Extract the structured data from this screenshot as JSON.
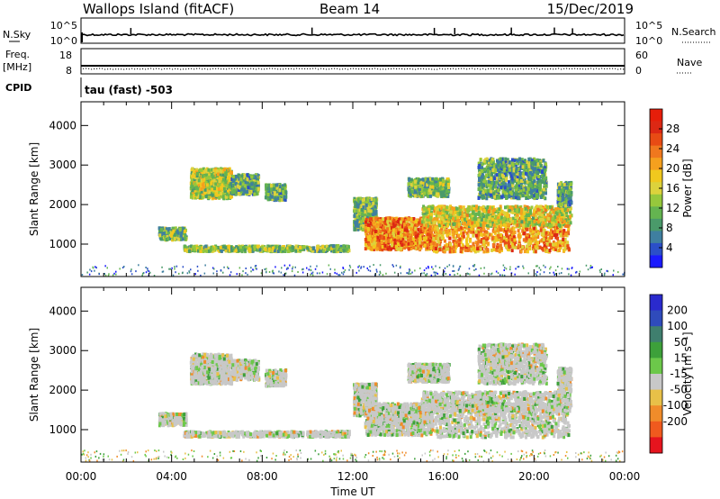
{
  "header": {
    "station": "Wallops Island (fitACF)",
    "beam": "Beam 14",
    "date": "15/Dec/2019"
  },
  "status_panels": {
    "nsky": {
      "label": "N.Sky",
      "left_ticks": [
        "10^5",
        "10^0"
      ]
    },
    "nsearch": {
      "label": "N.Search",
      "right_ticks": [
        "10^5",
        "10^0"
      ]
    },
    "freq": {
      "label_line1": "Freq.",
      "label_line2": "[MHz]",
      "left_ticks": [
        "18",
        "8"
      ]
    },
    "nave": {
      "label": "Nave",
      "right_ticks": [
        "60",
        "0"
      ]
    },
    "cpid": {
      "label": "CPID",
      "value": "tau (fast) -503"
    }
  },
  "time_axis": {
    "title": "Time UT",
    "ticks": [
      "00:00",
      "04:00",
      "08:00",
      "12:00",
      "16:00",
      "20:00",
      "00:00"
    ],
    "range_hours": [
      0,
      24
    ]
  },
  "chart_data": [
    {
      "type": "heatmap",
      "parameter": "Power",
      "ylabel": "Slant Range [km]",
      "yticks": [
        1000,
        2000,
        3000,
        4000
      ],
      "ylim": [
        180,
        4600
      ],
      "xlim": [
        0,
        24
      ],
      "colorbar": {
        "label": "Power [dB]",
        "ticks": [
          4,
          8,
          12,
          16,
          20,
          24,
          28
        ],
        "range": [
          0,
          32
        ],
        "colors": [
          "#1a1aff",
          "#2b4fc8",
          "#3f7fa0",
          "#4a9a6a",
          "#64b450",
          "#96c83c",
          "#dcd23c",
          "#f0c81e",
          "#f5a01e",
          "#f0781e",
          "#e84b14",
          "#dc2814",
          "#e61e0a"
        ]
      },
      "echo_regions": [
        {
          "t": [
            3.4,
            4.6
          ],
          "r": [
            1150,
            1450
          ],
          "level": 0.35
        },
        {
          "t": [
            4.5,
            9.8
          ],
          "r": [
            860,
            990
          ],
          "level": 0.4
        },
        {
          "t": [
            9.9,
            11.8
          ],
          "r": [
            860,
            1000
          ],
          "level": 0.35
        },
        {
          "t": [
            4.8,
            6.6
          ],
          "r": [
            2200,
            2950
          ],
          "level": 0.45
        },
        {
          "t": [
            6.6,
            7.8
          ],
          "r": [
            2300,
            2800
          ],
          "level": 0.3
        },
        {
          "t": [
            8.1,
            9.0
          ],
          "r": [
            2150,
            2550
          ],
          "level": 0.3
        },
        {
          "t": [
            12.0,
            13.0
          ],
          "r": [
            1400,
            2200
          ],
          "level": 0.35
        },
        {
          "t": [
            12.5,
            15.5
          ],
          "r": [
            900,
            1700
          ],
          "level": 0.72
        },
        {
          "t": [
            15.5,
            21.5
          ],
          "r": [
            850,
            1700
          ],
          "level": 0.68
        },
        {
          "t": [
            15.0,
            21.6
          ],
          "r": [
            1500,
            2000
          ],
          "level": 0.5
        },
        {
          "t": [
            14.4,
            16.2
          ],
          "r": [
            2250,
            2700
          ],
          "level": 0.35
        },
        {
          "t": [
            17.5,
            20.5
          ],
          "r": [
            2200,
            3200
          ],
          "level": 0.3
        },
        {
          "t": [
            21.0,
            21.6
          ],
          "r": [
            2000,
            2600
          ],
          "level": 0.3
        }
      ]
    },
    {
      "type": "heatmap",
      "parameter": "Velocity",
      "ylabel": "Slant Range [km]",
      "yticks": [
        1000,
        2000,
        3000,
        4000
      ],
      "ylim": [
        180,
        4600
      ],
      "xlim": [
        0,
        24
      ],
      "colorbar": {
        "label": "Velocity [m s⁻¹]",
        "ticks": [
          200,
          100,
          50,
          15,
          -15,
          -50,
          -100,
          -200
        ],
        "colors": [
          "#2a2acd",
          "#2f4bbb",
          "#3f7f6e",
          "#3da03a",
          "#6cc84a",
          "#c8c8c8",
          "#e8c048",
          "#f08c2a",
          "#f05a1e",
          "#e6141e"
        ]
      },
      "echo_regions": [
        {
          "t": [
            3.4,
            4.6
          ],
          "r": [
            1150,
            1450
          ],
          "level": 0.3
        },
        {
          "t": [
            4.5,
            9.8
          ],
          "r": [
            860,
            990
          ],
          "level": 0.25
        },
        {
          "t": [
            9.9,
            11.8
          ],
          "r": [
            860,
            1000
          ],
          "level": 0.25
        },
        {
          "t": [
            4.8,
            6.6
          ],
          "r": [
            2200,
            2950
          ],
          "level": 0.5
        },
        {
          "t": [
            6.6,
            7.8
          ],
          "r": [
            2300,
            2800
          ],
          "level": 0.5
        },
        {
          "t": [
            8.1,
            9.0
          ],
          "r": [
            2150,
            2550
          ],
          "level": 0.3
        },
        {
          "t": [
            12.0,
            13.0
          ],
          "r": [
            1400,
            2200
          ],
          "level": 0.35
        },
        {
          "t": [
            12.5,
            15.5
          ],
          "r": [
            900,
            1700
          ],
          "level": 0.5
        },
        {
          "t": [
            15.5,
            21.5
          ],
          "r": [
            850,
            1700
          ],
          "level": 0.5
        },
        {
          "t": [
            15.0,
            21.6
          ],
          "r": [
            1500,
            2000
          ],
          "level": 0.6
        },
        {
          "t": [
            14.4,
            16.2
          ],
          "r": [
            2250,
            2700
          ],
          "level": 0.3
        },
        {
          "t": [
            17.5,
            20.5
          ],
          "r": [
            2200,
            3200
          ],
          "level": 0.4
        },
        {
          "t": [
            21.0,
            21.6
          ],
          "r": [
            2000,
            2600
          ],
          "level": 0.4
        }
      ]
    }
  ]
}
